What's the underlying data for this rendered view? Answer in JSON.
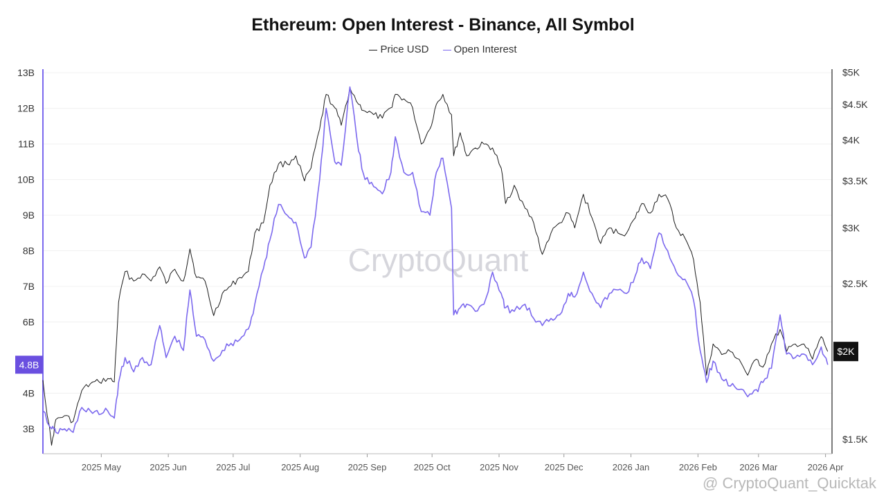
{
  "chart_data": {
    "type": "line",
    "title": "Ethereum: Open Interest - Binance, All Symbol",
    "legend_position": "top-center",
    "grid": true,
    "x_ticks": [
      "2025 May",
      "2025 Jun",
      "2025 Jul",
      "2025 Aug",
      "2025 Sep",
      "2025 Oct",
      "2025 Nov",
      "2025 Dec",
      "2026 Jan",
      "2026 Feb",
      "2026 Mar",
      "2026 Apr"
    ],
    "x_tick_dates": [
      "2025-05-01",
      "2025-06-01",
      "2025-07-01",
      "2025-08-01",
      "2025-09-01",
      "2025-10-01",
      "2025-11-01",
      "2025-12-01",
      "2026-01-01",
      "2026-02-01",
      "2026-03-01",
      "2026-04-01"
    ],
    "x_range": [
      "2025-04-04",
      "2026-04-04"
    ],
    "left_axis": {
      "ticks": [
        "3B",
        "4B",
        "6B",
        "7B",
        "8B",
        "9B",
        "10B",
        "11B",
        "12B",
        "13B"
      ],
      "tick_values": [
        3,
        4,
        6,
        7,
        8,
        9,
        10,
        11,
        12,
        13
      ],
      "range": [
        2.3,
        13.1
      ],
      "unit": "B",
      "current_label": "4.8B",
      "current_value": 4.8
    },
    "right_axis": {
      "scale": "log",
      "ticks": [
        "$1.5K",
        "$2.5K",
        "$3K",
        "$3.5K",
        "$4K",
        "$4.5K",
        "$5K"
      ],
      "tick_values": [
        1500,
        2500,
        3000,
        3500,
        4000,
        4500,
        5000
      ],
      "range": [
        1430,
        5050
      ],
      "current_label": "$2K",
      "current_value": 2000
    },
    "series": [
      {
        "name": "Price USD",
        "axis": "right",
        "color": "#1a1a1a",
        "points": [
          [
            "2025-04-04",
            1820
          ],
          [
            "2025-04-08",
            1470
          ],
          [
            "2025-04-10",
            1600
          ],
          [
            "2025-04-14",
            1620
          ],
          [
            "2025-04-18",
            1590
          ],
          [
            "2025-04-22",
            1760
          ],
          [
            "2025-04-26",
            1800
          ],
          [
            "2025-04-30",
            1810
          ],
          [
            "2025-05-04",
            1830
          ],
          [
            "2025-05-07",
            1810
          ],
          [
            "2025-05-09",
            2350
          ],
          [
            "2025-05-12",
            2600
          ],
          [
            "2025-05-16",
            2520
          ],
          [
            "2025-05-20",
            2580
          ],
          [
            "2025-05-24",
            2520
          ],
          [
            "2025-05-28",
            2640
          ],
          [
            "2025-05-31",
            2500
          ],
          [
            "2025-06-04",
            2620
          ],
          [
            "2025-06-08",
            2520
          ],
          [
            "2025-06-11",
            2800
          ],
          [
            "2025-06-14",
            2550
          ],
          [
            "2025-06-18",
            2520
          ],
          [
            "2025-06-22",
            2250
          ],
          [
            "2025-06-26",
            2420
          ],
          [
            "2025-06-30",
            2480
          ],
          [
            "2025-07-04",
            2550
          ],
          [
            "2025-07-08",
            2600
          ],
          [
            "2025-07-11",
            2950
          ],
          [
            "2025-07-15",
            3050
          ],
          [
            "2025-07-18",
            3450
          ],
          [
            "2025-07-22",
            3700
          ],
          [
            "2025-07-26",
            3700
          ],
          [
            "2025-07-30",
            3800
          ],
          [
            "2025-08-03",
            3500
          ],
          [
            "2025-08-06",
            3650
          ],
          [
            "2025-08-10",
            4150
          ],
          [
            "2025-08-13",
            4650
          ],
          [
            "2025-08-17",
            4450
          ],
          [
            "2025-08-20",
            4200
          ],
          [
            "2025-08-24",
            4750
          ],
          [
            "2025-08-28",
            4500
          ],
          [
            "2025-08-31",
            4400
          ],
          [
            "2025-09-04",
            4350
          ],
          [
            "2025-09-08",
            4300
          ],
          [
            "2025-09-12",
            4450
          ],
          [
            "2025-09-14",
            4650
          ],
          [
            "2025-09-18",
            4580
          ],
          [
            "2025-09-22",
            4450
          ],
          [
            "2025-09-26",
            3950
          ],
          [
            "2025-09-30",
            4150
          ],
          [
            "2025-10-03",
            4500
          ],
          [
            "2025-10-06",
            4650
          ],
          [
            "2025-10-10",
            4350
          ],
          [
            "2025-10-11",
            3800
          ],
          [
            "2025-10-14",
            4100
          ],
          [
            "2025-10-17",
            3800
          ],
          [
            "2025-10-21",
            3900
          ],
          [
            "2025-10-25",
            3950
          ],
          [
            "2025-10-29",
            3900
          ],
          [
            "2025-11-02",
            3650
          ],
          [
            "2025-11-04",
            3250
          ],
          [
            "2025-11-08",
            3450
          ],
          [
            "2025-11-13",
            3200
          ],
          [
            "2025-11-17",
            3050
          ],
          [
            "2025-11-21",
            2750
          ],
          [
            "2025-11-25",
            2950
          ],
          [
            "2025-11-29",
            3050
          ],
          [
            "2025-12-03",
            3150
          ],
          [
            "2025-12-06",
            3000
          ],
          [
            "2025-12-10",
            3350
          ],
          [
            "2025-12-14",
            3100
          ],
          [
            "2025-12-18",
            2850
          ],
          [
            "2025-12-22",
            3000
          ],
          [
            "2025-12-26",
            2950
          ],
          [
            "2025-12-30",
            2950
          ],
          [
            "2026-01-03",
            3100
          ],
          [
            "2026-01-06",
            3250
          ],
          [
            "2026-01-10",
            3150
          ],
          [
            "2026-01-14",
            3350
          ],
          [
            "2026-01-18",
            3300
          ],
          [
            "2026-01-22",
            3000
          ],
          [
            "2026-01-26",
            2900
          ],
          [
            "2026-01-30",
            2700
          ],
          [
            "2026-02-02",
            2350
          ],
          [
            "2026-02-05",
            1850
          ],
          [
            "2026-02-08",
            2050
          ],
          [
            "2026-02-12",
            1980
          ],
          [
            "2026-02-16",
            2000
          ],
          [
            "2026-02-20",
            1950
          ],
          [
            "2026-02-24",
            1850
          ],
          [
            "2026-02-28",
            1950
          ],
          [
            "2026-03-03",
            1900
          ],
          [
            "2026-03-07",
            2050
          ],
          [
            "2026-03-11",
            2150
          ],
          [
            "2026-03-14",
            2000
          ],
          [
            "2026-03-18",
            2050
          ],
          [
            "2026-03-22",
            2050
          ],
          [
            "2026-03-26",
            1950
          ],
          [
            "2026-03-30",
            2100
          ],
          [
            "2026-04-02",
            2000
          ]
        ]
      },
      {
        "name": "Open Interest",
        "axis": "left",
        "color": "#7b68ee",
        "points": [
          [
            "2025-04-04",
            3.5
          ],
          [
            "2025-04-08",
            3.0
          ],
          [
            "2025-04-10",
            2.9
          ],
          [
            "2025-04-14",
            3.0
          ],
          [
            "2025-04-18",
            2.9
          ],
          [
            "2025-04-22",
            3.6
          ],
          [
            "2025-04-26",
            3.5
          ],
          [
            "2025-04-30",
            3.4
          ],
          [
            "2025-05-04",
            3.5
          ],
          [
            "2025-05-07",
            3.3
          ],
          [
            "2025-05-09",
            4.3
          ],
          [
            "2025-05-12",
            5.0
          ],
          [
            "2025-05-16",
            4.6
          ],
          [
            "2025-05-20",
            5.0
          ],
          [
            "2025-05-24",
            4.8
          ],
          [
            "2025-05-28",
            5.9
          ],
          [
            "2025-05-31",
            5.0
          ],
          [
            "2025-06-04",
            5.6
          ],
          [
            "2025-06-08",
            5.2
          ],
          [
            "2025-06-11",
            6.9
          ],
          [
            "2025-06-14",
            5.6
          ],
          [
            "2025-06-18",
            5.5
          ],
          [
            "2025-06-22",
            4.9
          ],
          [
            "2025-06-26",
            5.2
          ],
          [
            "2025-06-30",
            5.4
          ],
          [
            "2025-07-04",
            5.5
          ],
          [
            "2025-07-08",
            5.8
          ],
          [
            "2025-07-11",
            6.5
          ],
          [
            "2025-07-15",
            7.5
          ],
          [
            "2025-07-18",
            8.3
          ],
          [
            "2025-07-22",
            9.3
          ],
          [
            "2025-07-26",
            9.0
          ],
          [
            "2025-07-30",
            8.8
          ],
          [
            "2025-08-03",
            7.8
          ],
          [
            "2025-08-06",
            8.1
          ],
          [
            "2025-08-10",
            10.0
          ],
          [
            "2025-08-13",
            12.0
          ],
          [
            "2025-08-17",
            10.5
          ],
          [
            "2025-08-20",
            10.4
          ],
          [
            "2025-08-24",
            12.6
          ],
          [
            "2025-08-28",
            10.8
          ],
          [
            "2025-08-31",
            10.0
          ],
          [
            "2025-09-04",
            9.8
          ],
          [
            "2025-09-08",
            9.6
          ],
          [
            "2025-09-12",
            10.2
          ],
          [
            "2025-09-14",
            11.2
          ],
          [
            "2025-09-18",
            10.2
          ],
          [
            "2025-09-22",
            10.2
          ],
          [
            "2025-09-26",
            9.1
          ],
          [
            "2025-09-30",
            9.0
          ],
          [
            "2025-10-03",
            10.2
          ],
          [
            "2025-10-06",
            10.6
          ],
          [
            "2025-10-10",
            9.2
          ],
          [
            "2025-10-11",
            6.2
          ],
          [
            "2025-10-14",
            6.4
          ],
          [
            "2025-10-17",
            6.5
          ],
          [
            "2025-10-21",
            6.3
          ],
          [
            "2025-10-25",
            6.5
          ],
          [
            "2025-10-29",
            7.4
          ],
          [
            "2025-11-02",
            6.8
          ],
          [
            "2025-11-04",
            6.4
          ],
          [
            "2025-11-08",
            6.3
          ],
          [
            "2025-11-13",
            6.5
          ],
          [
            "2025-11-17",
            6.1
          ],
          [
            "2025-11-21",
            5.9
          ],
          [
            "2025-11-25",
            6.1
          ],
          [
            "2025-11-29",
            6.2
          ],
          [
            "2025-12-03",
            6.8
          ],
          [
            "2025-12-06",
            6.7
          ],
          [
            "2025-12-10",
            7.4
          ],
          [
            "2025-12-14",
            6.8
          ],
          [
            "2025-12-18",
            6.4
          ],
          [
            "2025-12-22",
            6.8
          ],
          [
            "2025-12-26",
            6.9
          ],
          [
            "2025-12-30",
            6.8
          ],
          [
            "2026-01-03",
            7.3
          ],
          [
            "2026-01-06",
            7.8
          ],
          [
            "2026-01-10",
            7.5
          ],
          [
            "2026-01-14",
            8.5
          ],
          [
            "2026-01-18",
            8.0
          ],
          [
            "2026-01-22",
            7.4
          ],
          [
            "2026-01-26",
            7.2
          ],
          [
            "2026-01-30",
            6.6
          ],
          [
            "2026-02-02",
            5.2
          ],
          [
            "2026-02-05",
            4.3
          ],
          [
            "2026-02-08",
            4.9
          ],
          [
            "2026-02-12",
            4.4
          ],
          [
            "2026-02-16",
            4.2
          ],
          [
            "2026-02-20",
            4.1
          ],
          [
            "2026-02-24",
            3.9
          ],
          [
            "2026-02-28",
            4.1
          ],
          [
            "2026-03-03",
            4.3
          ],
          [
            "2026-03-07",
            4.7
          ],
          [
            "2026-03-11",
            6.2
          ],
          [
            "2026-03-14",
            5.1
          ],
          [
            "2026-03-18",
            5.0
          ],
          [
            "2026-03-22",
            5.1
          ],
          [
            "2026-03-26",
            4.8
          ],
          [
            "2026-03-30",
            5.3
          ],
          [
            "2026-04-02",
            4.8
          ]
        ]
      }
    ],
    "watermark": "CryptoQuant"
  },
  "footer": {
    "brand": "@ CryptoQuant_Quicktak"
  }
}
